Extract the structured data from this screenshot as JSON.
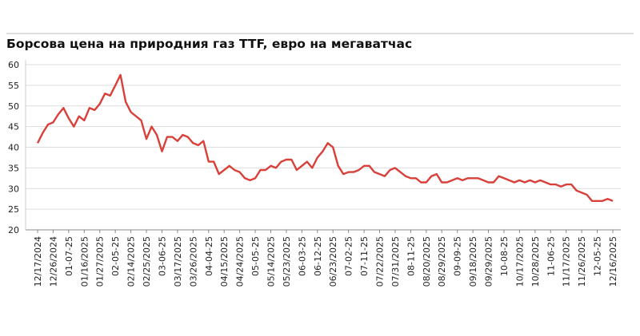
{
  "chart_data": {
    "type": "line",
    "title": "Борсова цена на природния газ TTF, евро на мегаватчас",
    "categories": [
      "12/17/2024",
      null,
      null,
      "12/26/2024",
      null,
      null,
      "01-07-25",
      null,
      null,
      "01/16/2025",
      null,
      null,
      "01/27/2025",
      null,
      null,
      "02-05-25",
      null,
      null,
      "02/14/2025",
      null,
      null,
      "02/25/2025",
      null,
      null,
      "03-06-25",
      null,
      null,
      "03/17/2025",
      null,
      null,
      "03/26/2025",
      null,
      null,
      "04-04-25",
      null,
      null,
      "04/15/2025",
      null,
      null,
      "04/24/2025",
      null,
      null,
      "05-05-25",
      null,
      null,
      "05/14/2025",
      null,
      null,
      "05/23/2025",
      null,
      null,
      "06-03-25",
      null,
      null,
      "06-12-25",
      null,
      null,
      "06/23/2025",
      null,
      null,
      "07-02-25",
      null,
      null,
      "07-11-25",
      null,
      null,
      "07/22/2025",
      null,
      null,
      "07/31/2025",
      null,
      null,
      "08-11-25",
      null,
      null,
      "08/20/2025",
      null,
      null,
      "08/29/2025",
      null,
      null,
      "09-09-25",
      null,
      null,
      "09/18/2025",
      null,
      null,
      "09/29/2025",
      null,
      null,
      "10-08-25",
      null,
      null,
      "10/17/2025",
      null,
      null,
      "10/28/2025",
      null,
      null,
      "11-06-25",
      null,
      null,
      "11/17/2025",
      null,
      null,
      "11/26/2025",
      null,
      null,
      "12-05-25",
      null,
      null,
      "12/16/2025"
    ],
    "values": [
      41,
      43.5,
      45.5,
      46,
      48,
      49.5,
      47,
      45,
      47.5,
      46.5,
      49.5,
      49,
      50.5,
      53,
      52.5,
      55,
      57.5,
      51,
      48.5,
      47.5,
      46.5,
      42,
      45,
      43,
      39,
      42.5,
      42.5,
      41.5,
      43,
      42.5,
      41,
      40.5,
      41.5,
      36.5,
      36.5,
      33.5,
      34.5,
      35.5,
      34.5,
      34,
      32.5,
      32,
      32.5,
      34.5,
      34.5,
      35.5,
      35,
      36.5,
      37,
      37,
      34.5,
      35.5,
      36.5,
      35,
      37.5,
      39,
      41,
      40,
      35.5,
      33.5,
      34,
      34,
      34.5,
      35.5,
      35.5,
      34,
      33.5,
      33,
      34.5,
      35,
      34,
      33,
      32.5,
      32.5,
      31.5,
      31.5,
      33,
      33.5,
      31.5,
      31.5,
      32,
      32.5,
      32,
      32.5,
      32.5,
      32.5,
      32,
      31.5,
      31.5,
      33,
      32.5,
      32,
      31.5,
      32,
      31.5,
      32,
      31.5,
      32,
      31.5,
      31,
      31,
      30.5,
      31,
      31,
      29.5,
      29,
      28.5,
      27,
      27,
      27,
      27.5,
      27
    ],
    "color": "#d9403a",
    "ylim": [
      20,
      60
    ],
    "yticks": [
      20,
      25,
      30,
      35,
      40,
      45,
      50,
      55,
      60
    ],
    "grid": true
  }
}
